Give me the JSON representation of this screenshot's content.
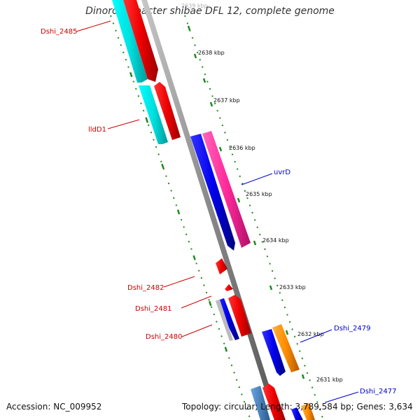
{
  "title": "Dinoroseobacter shibae DFL 12, complete genome",
  "footer": {
    "accession": "Accession: NC_009952",
    "summary": "Topology: circular; Length: 3,789,584 bp; Genes: 3,634"
  },
  "kbp_labels": [
    "2639 kbp",
    "2638 kbp",
    "2637 kbp",
    "2636 kbp",
    "2635 kbp",
    "2634 kbp",
    "2633 kbp",
    "2632 kbp",
    "2631 kbp"
  ],
  "gene_labels": [
    {
      "name": "Dshi_2485",
      "color": "#cc0000"
    },
    {
      "name": "lldD1",
      "color": "#cc0000"
    },
    {
      "name": "uvrD",
      "color": "#0000cc"
    },
    {
      "name": "Dshi_2482",
      "color": "#cc0000"
    },
    {
      "name": "Dshi_2481",
      "color": "#cc0000"
    },
    {
      "name": "Dshi_2480",
      "color": "#cc0000"
    },
    {
      "name": "Dshi_2479",
      "color": "#0000cc"
    },
    {
      "name": "Dshi_2477",
      "color": "#0000cc"
    }
  ],
  "colors": {
    "backbone": "#8c8c8c",
    "cyan": "#00e5e5",
    "red": "#ff0000",
    "blue": "#0000ee",
    "magenta": "#ff2a9a",
    "orange": "#ff8c00",
    "steelblue": "#4a86c0",
    "tick": "#1e8a1e"
  }
}
